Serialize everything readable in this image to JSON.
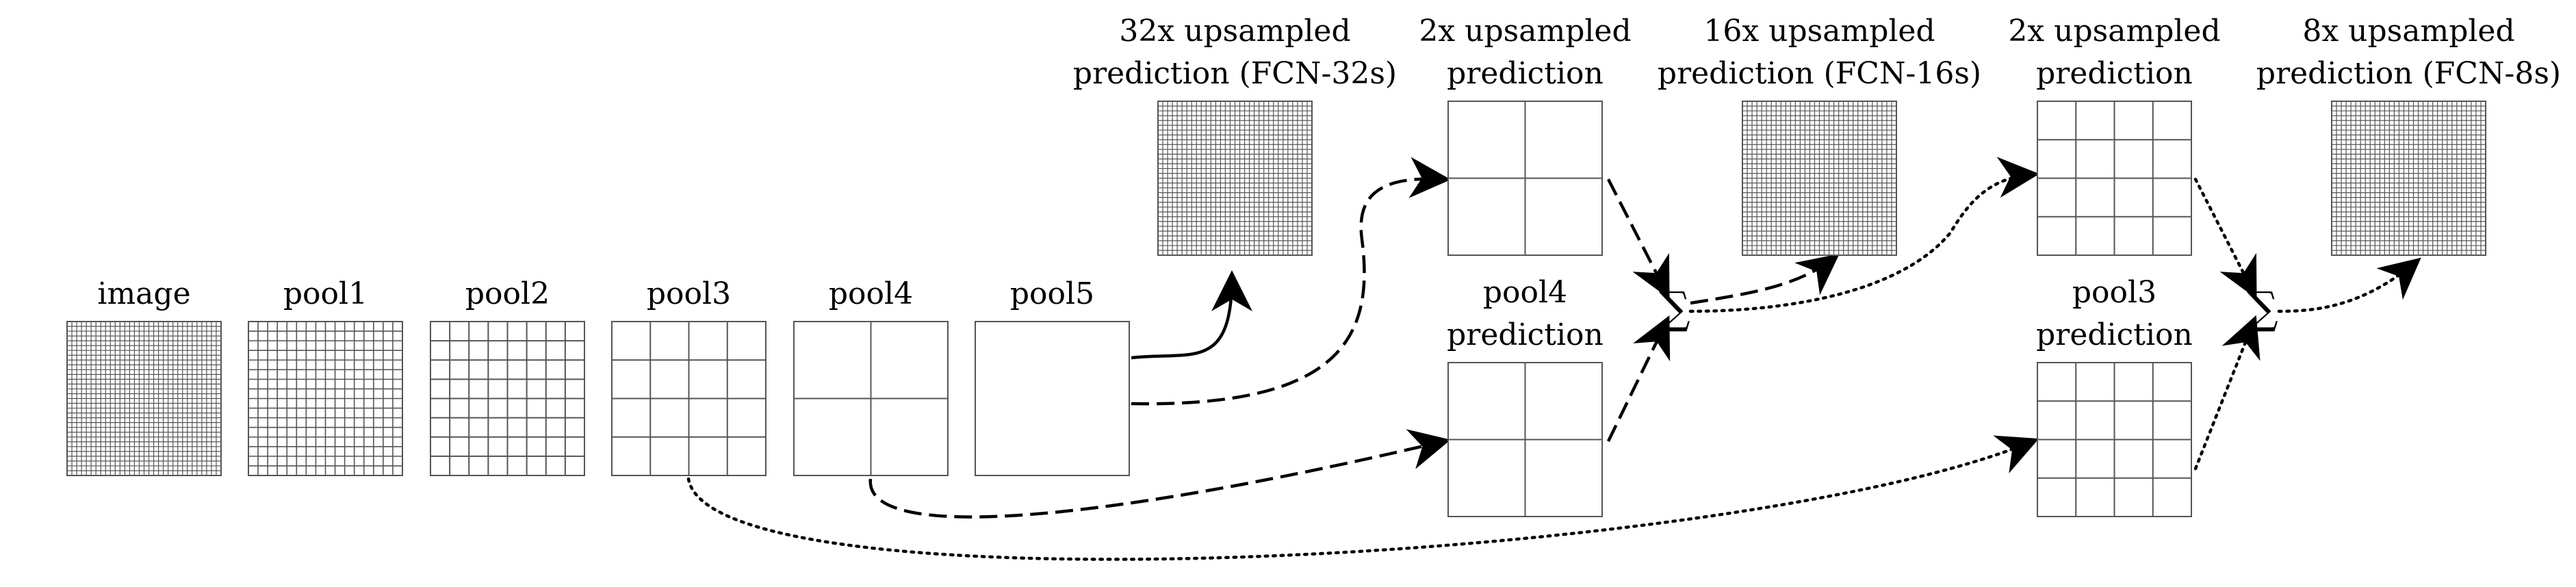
{
  "boxes": [
    {
      "id": "image",
      "lines": [
        "image"
      ],
      "grid": 32
    },
    {
      "id": "pool1",
      "lines": [
        "pool1"
      ],
      "grid": 16
    },
    {
      "id": "pool2",
      "lines": [
        "pool2"
      ],
      "grid": 8
    },
    {
      "id": "pool3",
      "lines": [
        "pool3"
      ],
      "grid": 4
    },
    {
      "id": "pool4",
      "lines": [
        "pool4"
      ],
      "grid": 2
    },
    {
      "id": "pool5",
      "lines": [
        "pool5"
      ],
      "grid": 1
    },
    {
      "id": "fcn32",
      "lines": [
        "32x upsampled",
        "prediction (FCN-32s)"
      ],
      "grid": 32
    },
    {
      "id": "up2a",
      "lines": [
        "2x upsampled",
        "prediction"
      ],
      "grid": 2
    },
    {
      "id": "pool4pred",
      "lines": [
        "pool4",
        "prediction"
      ],
      "grid": 2
    },
    {
      "id": "fcn16",
      "lines": [
        "16x upsampled",
        "prediction (FCN-16s)"
      ],
      "grid": 32
    },
    {
      "id": "up2b",
      "lines": [
        "2x upsampled",
        "prediction"
      ],
      "grid": 4
    },
    {
      "id": "pool3pred",
      "lines": [
        "pool3",
        "prediction"
      ],
      "grid": 4
    },
    {
      "id": "fcn8",
      "lines": [
        "8x upsampled",
        "prediction (FCN-8s)"
      ],
      "grid": 32
    }
  ],
  "sum_symbol": "∑",
  "connections": [
    {
      "from": "pool5",
      "to": "fcn32",
      "style": "solid"
    },
    {
      "from": "pool5",
      "to": "up2a",
      "style": "dashed"
    },
    {
      "from": "pool4",
      "to": "pool4pred",
      "style": "dashed"
    },
    {
      "from": "up2a",
      "to": "sum1",
      "style": "dashed"
    },
    {
      "from": "pool4pred",
      "to": "sum1",
      "style": "dashed"
    },
    {
      "from": "sum1",
      "to": "fcn16",
      "style": "dashed"
    },
    {
      "from": "sum1",
      "to": "up2b",
      "style": "dotted"
    },
    {
      "from": "pool3",
      "to": "pool3pred",
      "style": "dotted"
    },
    {
      "from": "up2b",
      "to": "sum2",
      "style": "dotted"
    },
    {
      "from": "pool3pred",
      "to": "sum2",
      "style": "dotted"
    },
    {
      "from": "sum2",
      "to": "fcn8",
      "style": "dotted"
    }
  ]
}
